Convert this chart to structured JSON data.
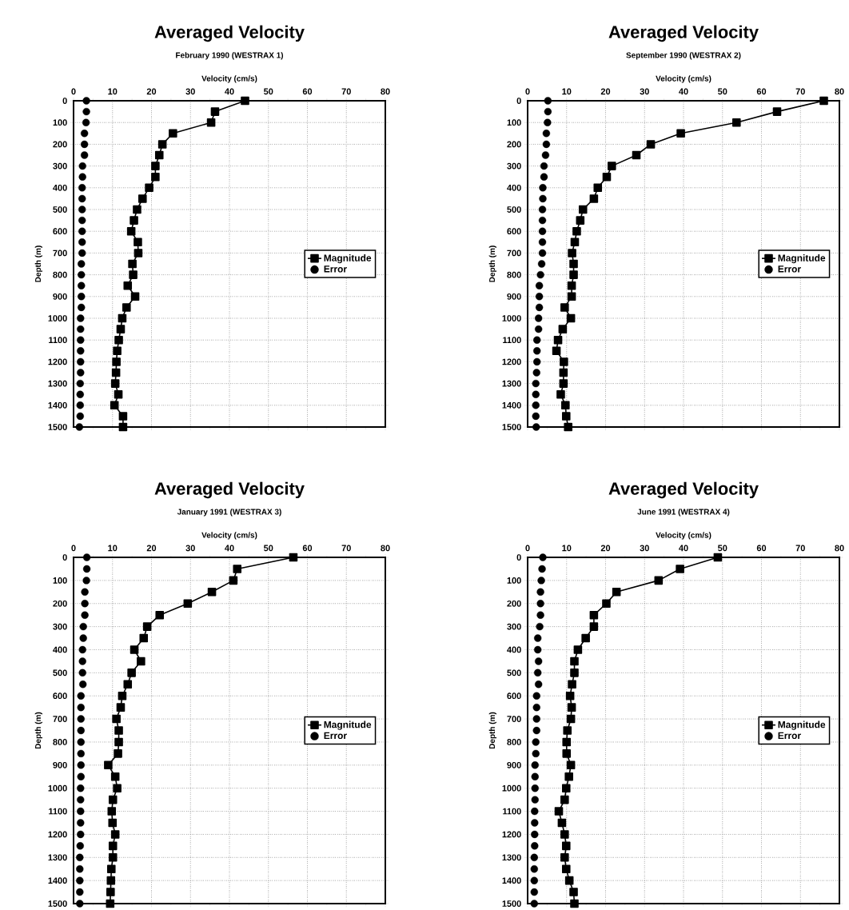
{
  "chart_data": [
    {
      "type": "line",
      "title": "Averaged Velocity",
      "subtitle": "February 1990 (WESTRAX 1)",
      "xlabel": "Velocity (cm/s)",
      "ylabel": "Depth (m)",
      "xlim": [
        0,
        80
      ],
      "xticks": [
        0,
        10,
        20,
        30,
        40,
        50,
        60,
        70,
        80
      ],
      "ylim": [
        1500,
        0
      ],
      "yticks": [
        0,
        100,
        200,
        300,
        400,
        500,
        600,
        700,
        800,
        900,
        1000,
        1100,
        1200,
        1300,
        1400,
        1500
      ],
      "grid": true,
      "legend": "right",
      "series": [
        {
          "name": "Magnitude",
          "marker": "square",
          "color": "#000000",
          "x": [
            44,
            36.3,
            35.3,
            25.5,
            22.8,
            22,
            21,
            21,
            19.4,
            17.7,
            16.3,
            15.5,
            14.8,
            16.5,
            16.6,
            15.1,
            15.3,
            13.9,
            15.8,
            13.6,
            12.5,
            12.1,
            11.6,
            11.2,
            11,
            10.9,
            10.7,
            11.5,
            10.5,
            12.7,
            12.7
          ],
          "values": [
            0,
            50,
            100,
            150,
            200,
            250,
            300,
            350,
            400,
            450,
            500,
            550,
            600,
            650,
            700,
            750,
            800,
            850,
            900,
            950,
            1000,
            1050,
            1100,
            1150,
            1200,
            1250,
            1300,
            1350,
            1400,
            1450,
            1500
          ]
        },
        {
          "name": "Error",
          "type": "scatter",
          "marker": "circle",
          "color": "#000000",
          "x": [
            3.3,
            3.3,
            3.2,
            2.8,
            2.8,
            2.8,
            2.3,
            2.3,
            2.2,
            2.2,
            2.2,
            2.2,
            2.2,
            2.2,
            2.2,
            2,
            2,
            2,
            2,
            2,
            1.8,
            1.8,
            1.8,
            1.8,
            1.8,
            1.8,
            1.7,
            1.7,
            1.7,
            1.7,
            1.5
          ],
          "values": [
            0,
            50,
            100,
            150,
            200,
            250,
            300,
            350,
            400,
            450,
            500,
            550,
            600,
            650,
            700,
            750,
            800,
            850,
            900,
            950,
            1000,
            1050,
            1100,
            1150,
            1200,
            1250,
            1300,
            1350,
            1400,
            1450,
            1500
          ]
        }
      ]
    },
    {
      "type": "line",
      "title": "Averaged Velocity",
      "subtitle": "September 1990 (WESTRAX 2)",
      "xlabel": "Velocity (cm/s)",
      "ylabel": "Depth (m)",
      "xlim": [
        0,
        80
      ],
      "xticks": [
        0,
        10,
        20,
        30,
        40,
        50,
        60,
        70,
        80
      ],
      "ylim": [
        1500,
        0
      ],
      "yticks": [
        0,
        100,
        200,
        300,
        400,
        500,
        600,
        700,
        800,
        900,
        1000,
        1100,
        1200,
        1300,
        1400,
        1500
      ],
      "grid": true,
      "legend": "right",
      "series": [
        {
          "name": "Magnitude",
          "marker": "square",
          "color": "#000000",
          "x": [
            76,
            64,
            53.6,
            39.3,
            31.6,
            27.9,
            21.6,
            20.3,
            18,
            17,
            14.2,
            13.5,
            12.6,
            12.1,
            11.4,
            11.8,
            11.8,
            11.3,
            11.3,
            9.5,
            11.1,
            9,
            7.8,
            7.4,
            9.3,
            9.2,
            9.2,
            8.5,
            9.7,
            9.9,
            10.4
          ],
          "values": [
            0,
            50,
            100,
            150,
            200,
            250,
            300,
            350,
            400,
            450,
            500,
            550,
            600,
            650,
            700,
            750,
            800,
            850,
            900,
            950,
            1000,
            1050,
            1100,
            1150,
            1200,
            1250,
            1300,
            1350,
            1400,
            1450,
            1500
          ]
        },
        {
          "name": "Error",
          "type": "scatter",
          "marker": "circle",
          "color": "#000000",
          "x": [
            5.2,
            5.2,
            5.1,
            4.8,
            4.8,
            4.6,
            4.2,
            4.2,
            3.9,
            3.9,
            3.8,
            3.8,
            3.8,
            3.8,
            3.8,
            3.6,
            3.3,
            3,
            3,
            3,
            2.8,
            2.8,
            2.4,
            2.4,
            2.4,
            2.3,
            2.1,
            2.1,
            2.1,
            2.1,
            2.2
          ],
          "values": [
            0,
            50,
            100,
            150,
            200,
            250,
            300,
            350,
            400,
            450,
            500,
            550,
            600,
            650,
            700,
            750,
            800,
            850,
            900,
            950,
            1000,
            1050,
            1100,
            1150,
            1200,
            1250,
            1300,
            1350,
            1400,
            1450,
            1500
          ]
        }
      ]
    },
    {
      "type": "line",
      "title": "Averaged Velocity",
      "subtitle": "January 1991 (WESTRAX 3)",
      "xlabel": "Velocity (cm/s)",
      "ylabel": "Depth (m)",
      "xlim": [
        0,
        80
      ],
      "xticks": [
        0,
        10,
        20,
        30,
        40,
        50,
        60,
        70,
        80
      ],
      "ylim": [
        1500,
        0
      ],
      "yticks": [
        0,
        100,
        200,
        300,
        400,
        500,
        600,
        700,
        800,
        900,
        1000,
        1100,
        1200,
        1300,
        1400,
        1500
      ],
      "grid": true,
      "legend": "right",
      "series": [
        {
          "name": "Magnitude",
          "marker": "square",
          "color": "#000000",
          "x": [
            56.4,
            42,
            41,
            35.5,
            29.3,
            22.1,
            18.9,
            18,
            15.6,
            17.3,
            14.9,
            13.9,
            12.5,
            12.1,
            11,
            11.6,
            11.6,
            11.4,
            8.9,
            10.7,
            11.2,
            10.1,
            9.8,
            10,
            10.7,
            10.1,
            10.1,
            9.7,
            9.6,
            9.5,
            9.4
          ],
          "values": [
            0,
            50,
            100,
            150,
            200,
            250,
            300,
            350,
            400,
            450,
            500,
            550,
            600,
            650,
            700,
            750,
            800,
            850,
            900,
            950,
            1000,
            1050,
            1100,
            1150,
            1200,
            1250,
            1300,
            1350,
            1400,
            1450,
            1500
          ]
        },
        {
          "name": "Error",
          "type": "scatter",
          "marker": "circle",
          "color": "#000000",
          "x": [
            3.4,
            3.4,
            3.3,
            2.9,
            2.9,
            2.9,
            2.5,
            2.5,
            2.3,
            2.3,
            2.3,
            2.4,
            1.9,
            1.9,
            1.9,
            1.9,
            1.9,
            1.9,
            1.9,
            1.9,
            1.8,
            1.8,
            1.8,
            1.8,
            1.8,
            1.7,
            1.6,
            1.6,
            1.6,
            1.6,
            1.6
          ],
          "values": [
            0,
            50,
            100,
            150,
            200,
            250,
            300,
            350,
            400,
            450,
            500,
            550,
            600,
            650,
            700,
            750,
            800,
            850,
            900,
            950,
            1000,
            1050,
            1100,
            1150,
            1200,
            1250,
            1300,
            1350,
            1400,
            1450,
            1500
          ]
        }
      ]
    },
    {
      "type": "line",
      "title": "Averaged Velocity",
      "subtitle": "June 1991 (WESTRAX 4)",
      "xlabel": "Velocity (cm/s)",
      "ylabel": "Depth (m)",
      "xlim": [
        0,
        80
      ],
      "xticks": [
        0,
        10,
        20,
        30,
        40,
        50,
        60,
        70,
        80
      ],
      "ylim": [
        1500,
        0
      ],
      "yticks": [
        0,
        100,
        200,
        300,
        400,
        500,
        600,
        700,
        800,
        900,
        1000,
        1100,
        1200,
        1300,
        1400,
        1500
      ],
      "grid": true,
      "legend": "right",
      "series": [
        {
          "name": "Magnitude",
          "marker": "square",
          "color": "#000000",
          "x": [
            48.8,
            39.1,
            33.6,
            22.8,
            20.2,
            17,
            17,
            14.9,
            12.9,
            12,
            12,
            11.4,
            10.9,
            11.3,
            11.1,
            10.2,
            10,
            10,
            11.1,
            10.6,
            9.9,
            9.5,
            8,
            8.8,
            9.5,
            9.9,
            9.5,
            9.9,
            10.7,
            11.8,
            12
          ],
          "values": [
            0,
            50,
            100,
            150,
            200,
            250,
            300,
            350,
            400,
            450,
            500,
            550,
            600,
            650,
            700,
            750,
            800,
            850,
            900,
            950,
            1000,
            1050,
            1100,
            1150,
            1200,
            1250,
            1300,
            1350,
            1400,
            1450,
            1500
          ]
        },
        {
          "name": "Error",
          "type": "scatter",
          "marker": "circle",
          "color": "#000000",
          "x": [
            3.9,
            3.7,
            3.5,
            3.3,
            3.3,
            3.3,
            3.1,
            2.6,
            2.6,
            2.8,
            2.6,
            2.8,
            2.3,
            2.3,
            2.3,
            2.3,
            2.1,
            2.1,
            1.9,
            1.9,
            1.9,
            1.9,
            1.8,
            1.8,
            1.8,
            1.8,
            1.7,
            1.7,
            1.7,
            1.7,
            1.7
          ],
          "values": [
            0,
            50,
            100,
            150,
            200,
            250,
            300,
            350,
            400,
            450,
            500,
            550,
            600,
            650,
            700,
            750,
            800,
            850,
            900,
            950,
            1000,
            1050,
            1100,
            1150,
            1200,
            1250,
            1300,
            1350,
            1400,
            1450,
            1500
          ]
        }
      ]
    }
  ]
}
